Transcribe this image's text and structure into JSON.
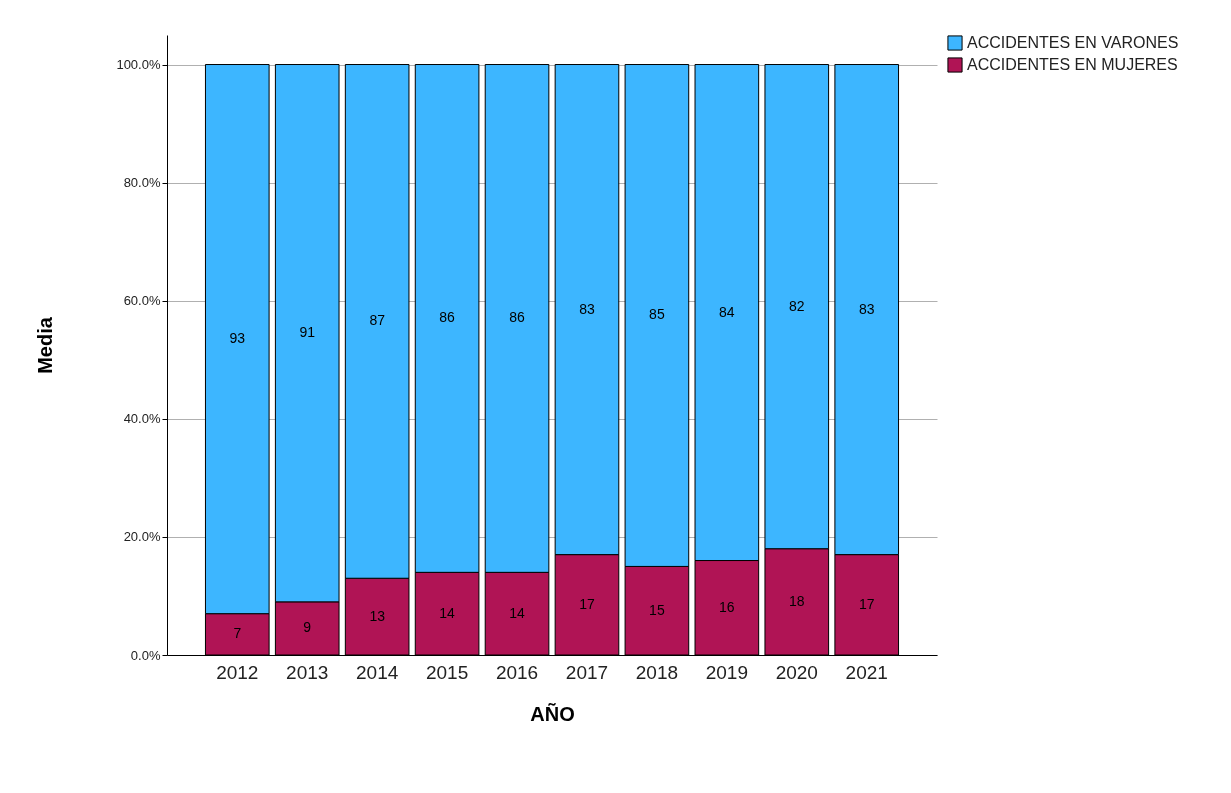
{
  "chart_data": {
    "type": "bar",
    "stacked": true,
    "xlabel": "AÑO",
    "ylabel": "Media",
    "categories": [
      "2012",
      "2013",
      "2014",
      "2015",
      "2016",
      "2017",
      "2018",
      "2019",
      "2020",
      "2021"
    ],
    "series": [
      {
        "name": "ACCIDENTES EN MUJERES",
        "color": "#b01455",
        "values": [
          7,
          9,
          13,
          14,
          14,
          17,
          15,
          16,
          18,
          17
        ]
      },
      {
        "name": "ACCIDENTES EN VARONES",
        "color": "#3db6ff",
        "values": [
          93,
          91,
          87,
          86,
          86,
          83,
          85,
          84,
          82,
          83
        ]
      }
    ],
    "ylim": [
      0,
      105
    ],
    "yticks": [
      {
        "value": 0,
        "label": "0.0%"
      },
      {
        "value": 20,
        "label": "20.0%"
      },
      {
        "value": 40,
        "label": "40.0%"
      },
      {
        "value": 60,
        "label": "60.0%"
      },
      {
        "value": 80,
        "label": "80.0%"
      },
      {
        "value": 100,
        "label": "100.0%"
      }
    ],
    "grid": "y",
    "legend": "top right",
    "data_labels": true
  }
}
